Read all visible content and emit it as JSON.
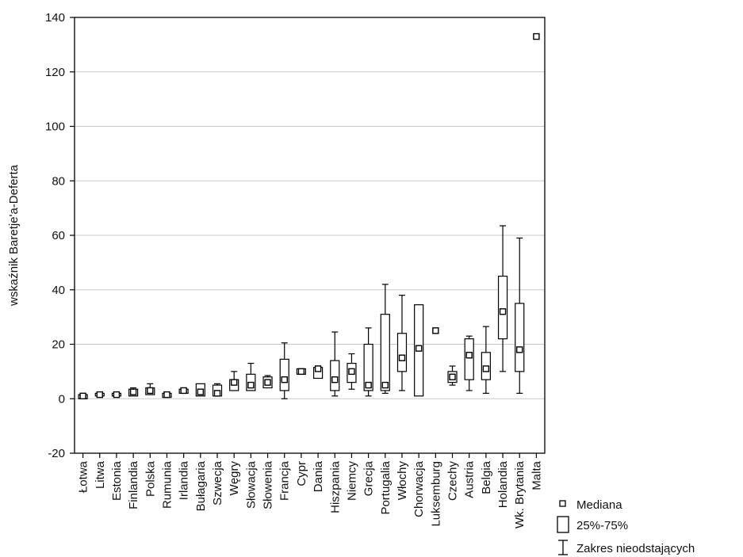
{
  "chart_data": {
    "type": "boxplot",
    "ylabel": "wskaźnik Baretje'a-Deferta",
    "xlabel": "",
    "ylim": [
      -20,
      140
    ],
    "yticks": [
      "-20",
      "0",
      "20",
      "40",
      "60",
      "80",
      "100",
      "120",
      "140"
    ],
    "grid": true,
    "legend_position": "bottom-right",
    "categories": [
      "Łotwa",
      "Litwa",
      "Estonia",
      "Finlandia",
      "Polska",
      "Rumunia",
      "Irlandia",
      "Bułagaria",
      "Szwecja",
      "Węgry",
      "Słowacja",
      "Słowenia",
      "Francja",
      "Cypr",
      "Dania",
      "Hiszpania",
      "Niemcy",
      "Grecja",
      "Portugalia",
      "Włochy",
      "Chorwacja",
      "Luksemburg",
      "Czechy",
      "Austria",
      "Belgia",
      "Holandia",
      "Wk. Brytania",
      "Malta"
    ],
    "series": [
      {
        "category": "Łotwa",
        "median": 1,
        "q1": 0,
        "q3": 1.5,
        "whisker_low": 0,
        "whisker_high": 1.5
      },
      {
        "category": "Litwa",
        "median": 1.5,
        "q1": 1,
        "q3": 2,
        "whisker_low": 1,
        "whisker_high": 2
      },
      {
        "category": "Estonia",
        "median": 1.5,
        "q1": 1,
        "q3": 2,
        "whisker_low": 1,
        "whisker_high": 2
      },
      {
        "category": "Finlandia",
        "median": 2.5,
        "q1": 1,
        "q3": 3.5,
        "whisker_low": 1,
        "whisker_high": 4
      },
      {
        "category": "Polska",
        "median": 3,
        "q1": 1.5,
        "q3": 4,
        "whisker_low": 1.5,
        "whisker_high": 5.5
      },
      {
        "category": "Rumunia",
        "median": 1.5,
        "q1": 0.5,
        "q3": 2,
        "whisker_low": 0.5,
        "whisker_high": 2.5
      },
      {
        "category": "Irlandia",
        "median": 3,
        "q1": 2,
        "q3": 3.5,
        "whisker_low": 2,
        "whisker_high": 3.5
      },
      {
        "category": "Bułagaria",
        "median": 2.5,
        "q1": 1,
        "q3": 5.5,
        "whisker_low": 1,
        "whisker_high": 5.5
      },
      {
        "category": "Szwecja",
        "median": 2,
        "q1": 1,
        "q3": 5,
        "whisker_low": 1,
        "whisker_high": 5.5
      },
      {
        "category": "Węgry",
        "median": 6,
        "q1": 3,
        "q3": 7,
        "whisker_low": 3,
        "whisker_high": 10
      },
      {
        "category": "Słowacja",
        "median": 5,
        "q1": 3,
        "q3": 9,
        "whisker_low": 3,
        "whisker_high": 13
      },
      {
        "category": "Słowenia",
        "median": 6,
        "q1": 4,
        "q3": 8,
        "whisker_low": 4,
        "whisker_high": 8.5
      },
      {
        "category": "Francja",
        "median": 7,
        "q1": 3,
        "q3": 14.5,
        "whisker_low": 0,
        "whisker_high": 20.5
      },
      {
        "category": "Cypr",
        "median": 10,
        "q1": 9,
        "q3": 11,
        "whisker_low": 9,
        "whisker_high": 11
      },
      {
        "category": "Dania",
        "median": 11,
        "q1": 7.5,
        "q3": 11.5,
        "whisker_low": 7.5,
        "whisker_high": 12
      },
      {
        "category": "Hiszpania",
        "median": 7,
        "q1": 3,
        "q3": 14,
        "whisker_low": 1,
        "whisker_high": 24.5
      },
      {
        "category": "Niemcy",
        "median": 10,
        "q1": 6,
        "q3": 13,
        "whisker_low": 3.5,
        "whisker_high": 16.5
      },
      {
        "category": "Grecja",
        "median": 5,
        "q1": 3,
        "q3": 20,
        "whisker_low": 1,
        "whisker_high": 26
      },
      {
        "category": "Portugalia",
        "median": 5,
        "q1": 3,
        "q3": 31,
        "whisker_low": 2,
        "whisker_high": 42
      },
      {
        "category": "Włochy",
        "median": 15,
        "q1": 10,
        "q3": 24,
        "whisker_low": 3,
        "whisker_high": 38
      },
      {
        "category": "Chorwacja",
        "median": 18.5,
        "q1": 1,
        "q3": 34.5,
        "whisker_low": 1,
        "whisker_high": 34.5
      },
      {
        "category": "Luksemburg",
        "median": 25,
        "q1": 25,
        "q3": 25,
        "whisker_low": 25,
        "whisker_high": 25
      },
      {
        "category": "Czechy",
        "median": 8,
        "q1": 6,
        "q3": 10,
        "whisker_low": 5,
        "whisker_high": 12
      },
      {
        "category": "Austria",
        "median": 16,
        "q1": 7,
        "q3": 22,
        "whisker_low": 3,
        "whisker_high": 23
      },
      {
        "category": "Belgia",
        "median": 11,
        "q1": 7,
        "q3": 17,
        "whisker_low": 2,
        "whisker_high": 26.5
      },
      {
        "category": "Holandia",
        "median": 32,
        "q1": 22,
        "q3": 45,
        "whisker_low": 10,
        "whisker_high": 63.5
      },
      {
        "category": "Wk. Brytania",
        "median": 18,
        "q1": 10,
        "q3": 35,
        "whisker_low": 2,
        "whisker_high": 59
      },
      {
        "category": "Malta",
        "median": 133,
        "q1": 133,
        "q3": 133,
        "whisker_low": 133,
        "whisker_high": 133
      }
    ],
    "legend": {
      "median_label": "Mediana",
      "box_label": "25%-75%",
      "whisker_label": "Zakres nieodstających"
    }
  }
}
